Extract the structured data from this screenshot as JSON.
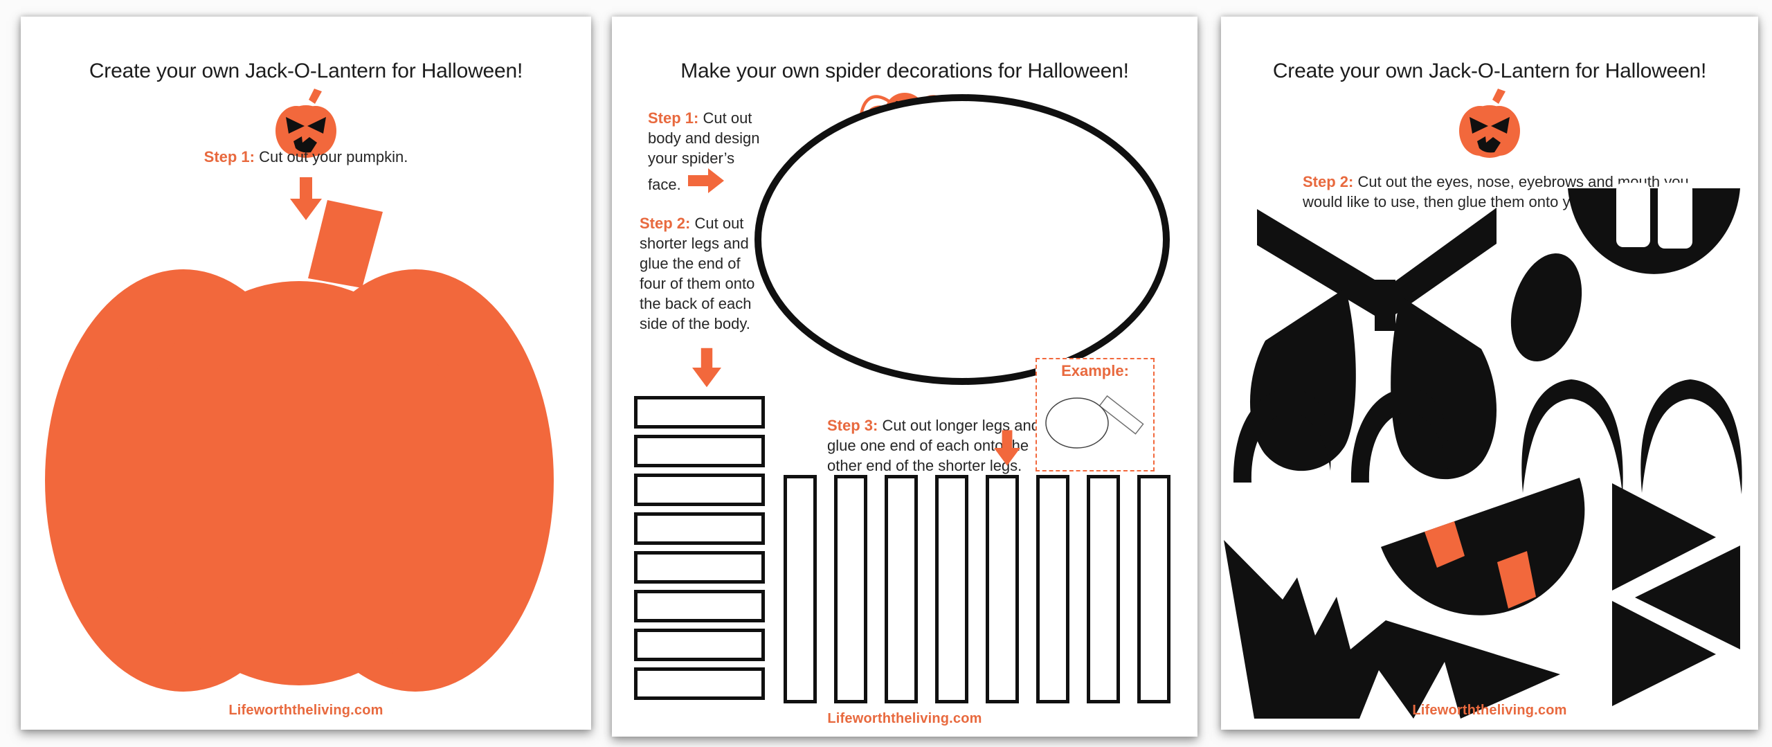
{
  "colors": {
    "accent": "#F2683C",
    "accent_text": "#E8693E",
    "ink": "#141414",
    "paper": "#ffffff",
    "canvas": "#fbfbfb"
  },
  "pages": [
    {
      "title": "Create your own Jack-O-Lantern for Halloween!",
      "icon": "jack-o-lantern-pumpkin-icon",
      "step": {
        "label": "Step 1:",
        "text": "Cut out your pumpkin."
      },
      "arrow_icon": "down-arrow",
      "cutout": "large-orange-pumpkin",
      "footer": "Lifeworththeliving.com"
    },
    {
      "title": "Make your own spider decorations for Halloween!",
      "icon": "spider-icon",
      "steps": [
        {
          "label": "Step 1:",
          "text": "Cut out body and design your spider’s face.",
          "arrow": "right-arrow"
        },
        {
          "label": "Step 2:",
          "text": "Cut out shorter legs and glue the end of four of them onto the back of each side of the body.",
          "arrow": "down-arrow"
        },
        {
          "label": "Step 3:",
          "text": "Cut out longer legs and glue one end of each onto the other end of the shorter legs.",
          "arrow": "down-arrow"
        }
      ],
      "example": {
        "label": "Example:",
        "figure": "spider-body-with-one-leg"
      },
      "short_leg_count": 8,
      "long_leg_count": 8,
      "footer": "Lifeworththeliving.com"
    },
    {
      "title": "Create your own Jack-O-Lantern for Halloween!",
      "icon": "jack-o-lantern-pumpkin-icon",
      "step": {
        "label": "Step 2:",
        "text": "Cut out the eyes, nose, eyebrows and mouth you would like to use, then glue them onto your pumpkin."
      },
      "shapes": [
        "angry-eyebrows-with-stem",
        "angry-teardrop-eyes",
        "oval-nose",
        "toothy-grin-mouth",
        "curved-eyebrows",
        "arched-eyes",
        "zigzag-mouth",
        "smile-mouth-with-fangs",
        "triangle-pieces"
      ],
      "footer": "Lifeworththeliving.com"
    }
  ]
}
